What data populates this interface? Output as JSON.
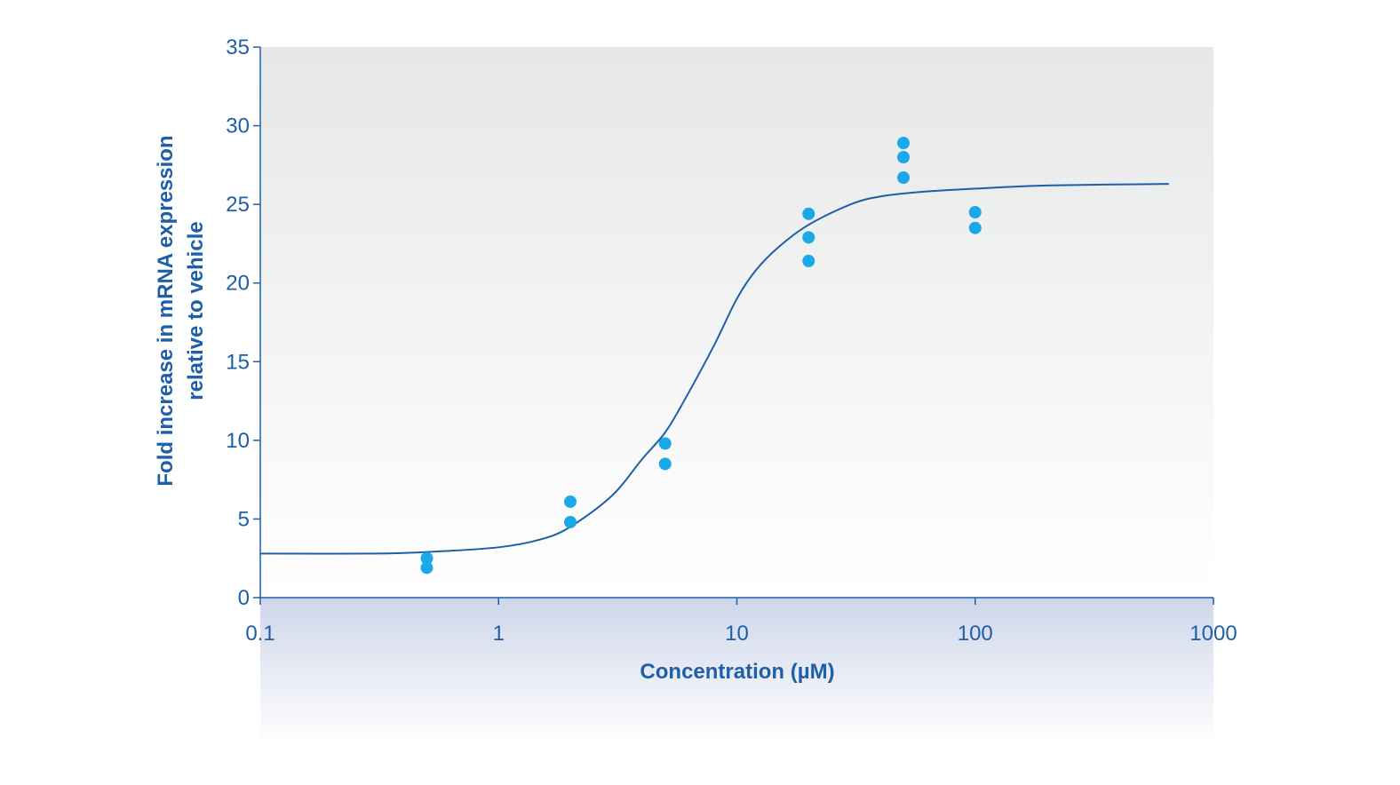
{
  "chart_data": {
    "type": "scatter",
    "xlabel": "Concentration (µM)",
    "ylabel_lines": [
      "Fold increase in mRNA expression",
      "relative to vehicle"
    ],
    "x_scale": "log",
    "xlim": [
      0.1,
      1000
    ],
    "ylim": [
      0,
      35
    ],
    "x_ticks": [
      {
        "value": 0.1,
        "label": "0.1"
      },
      {
        "value": 1,
        "label": "1"
      },
      {
        "value": 10,
        "label": "10"
      },
      {
        "value": 100,
        "label": "100"
      },
      {
        "value": 1000,
        "label": "1000"
      }
    ],
    "y_ticks": [
      {
        "value": 0,
        "label": "0"
      },
      {
        "value": 5,
        "label": "5"
      },
      {
        "value": 10,
        "label": "10"
      },
      {
        "value": 15,
        "label": "15"
      },
      {
        "value": 20,
        "label": "20"
      },
      {
        "value": 25,
        "label": "25"
      },
      {
        "value": 30,
        "label": "30"
      },
      {
        "value": 35,
        "label": "35"
      }
    ],
    "points": [
      {
        "x": 0.5,
        "y": 2.5
      },
      {
        "x": 0.5,
        "y": 1.9
      },
      {
        "x": 2,
        "y": 6.1
      },
      {
        "x": 2,
        "y": 4.8
      },
      {
        "x": 5,
        "y": 9.8
      },
      {
        "x": 5,
        "y": 8.5
      },
      {
        "x": 20,
        "y": 24.4
      },
      {
        "x": 20,
        "y": 22.9
      },
      {
        "x": 20,
        "y": 21.4
      },
      {
        "x": 50,
        "y": 28.9
      },
      {
        "x": 50,
        "y": 28.0
      },
      {
        "x": 50,
        "y": 26.7
      },
      {
        "x": 100,
        "y": 24.5
      },
      {
        "x": 100,
        "y": 23.5
      }
    ],
    "fit_curve": [
      {
        "x": 0.1,
        "y": 2.8
      },
      {
        "x": 0.3,
        "y": 2.8
      },
      {
        "x": 0.5,
        "y": 2.9
      },
      {
        "x": 1,
        "y": 3.2
      },
      {
        "x": 1.5,
        "y": 3.7
      },
      {
        "x": 2,
        "y": 4.5
      },
      {
        "x": 3,
        "y": 6.5
      },
      {
        "x": 4,
        "y": 8.8
      },
      {
        "x": 5,
        "y": 10.5
      },
      {
        "x": 6,
        "y": 12.5
      },
      {
        "x": 8,
        "y": 16.0
      },
      {
        "x": 10,
        "y": 19.0
      },
      {
        "x": 12,
        "y": 20.8
      },
      {
        "x": 15,
        "y": 22.3
      },
      {
        "x": 20,
        "y": 23.7
      },
      {
        "x": 30,
        "y": 25.0
      },
      {
        "x": 40,
        "y": 25.5
      },
      {
        "x": 60,
        "y": 25.8
      },
      {
        "x": 100,
        "y": 26.0
      },
      {
        "x": 200,
        "y": 26.2
      },
      {
        "x": 650,
        "y": 26.3
      }
    ],
    "colors": {
      "axis": "#1f5fa8",
      "curve": "#1f5fa8",
      "point": "#1ba8e8",
      "plot_bg_top": "#e6e7e8",
      "plot_bg_bottom": "#ffffff",
      "below_axis_band_top": "#cfd6ea"
    },
    "grid": false,
    "legend": "none"
  }
}
